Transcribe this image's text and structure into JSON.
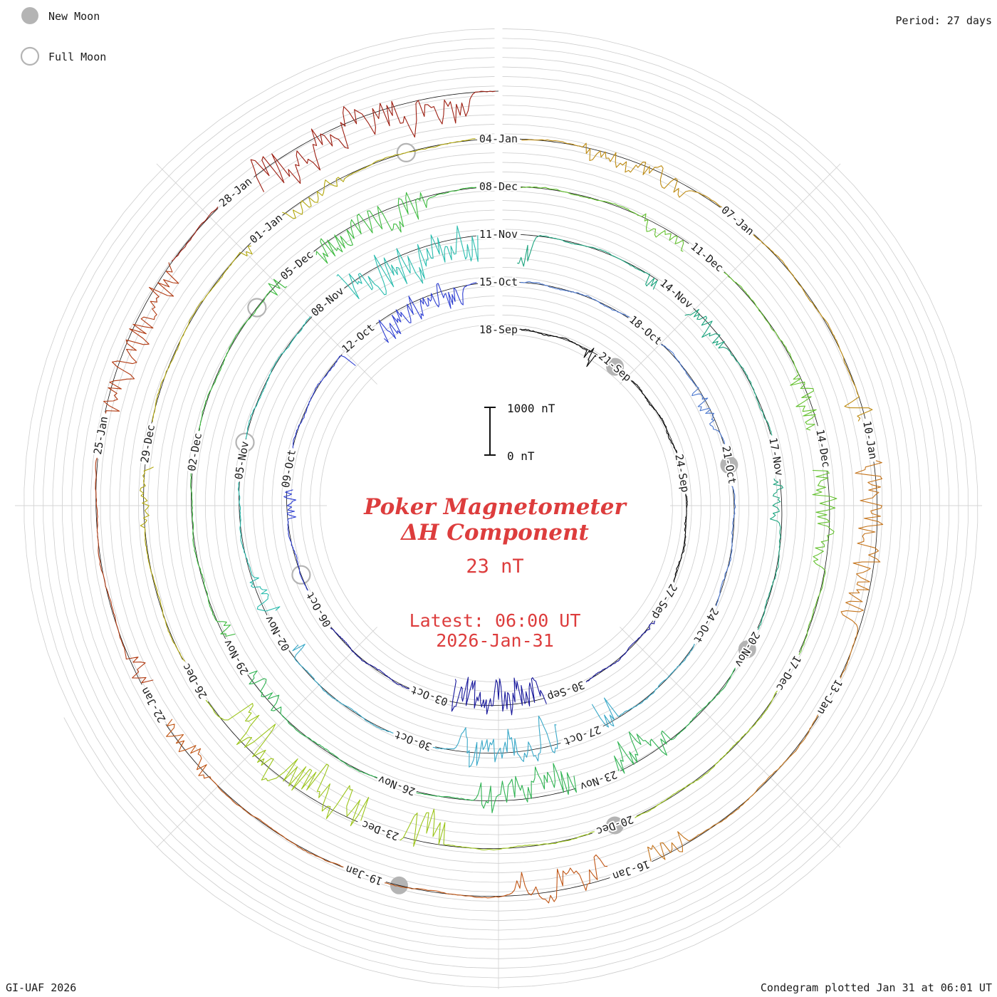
{
  "header": {
    "period_label": "Period: 27 days"
  },
  "legend": {
    "new_moon": "New Moon",
    "full_moon": "Full Moon"
  },
  "footer": {
    "left": "GI-UAF 2026",
    "right": "Condegram plotted Jan 31 at 06:01 UT"
  },
  "colors": {
    "accent": "#dd3d3d",
    "moon_gray": "#b4b4b4"
  },
  "center": {
    "title_line1": "Poker Magnetometer",
    "title_line2": "ΔH Component",
    "current_value": "23 nT",
    "latest_line1": "Latest: 06:00 UT",
    "latest_line2": "2026-Jan-31",
    "accent_color": "#dd3d3d"
  },
  "scalebar": {
    "top_label": "1000 nT",
    "bottom_label": "0 nT",
    "span_nt": 1000
  },
  "chart_data": {
    "type": "line",
    "subtype": "condegram-spiral",
    "title": "Poker Magnetometer ΔH Component",
    "station": "Poker",
    "component": "ΔH",
    "latest_value_nt": 23,
    "latest_time": "Latest: 06:00 UT 2026-Jan-31",
    "period_days": 27,
    "total_days": 135,
    "label_step_days": 3,
    "start_label": "18-Sep",
    "end_label": "31-Jan",
    "nt_per_ring_gap": 1000,
    "date_labels": [
      "18-Sep",
      "21-Sep",
      "24-Sep",
      "27-Sep",
      "30-Sep",
      "03-Oct",
      "06-Oct",
      "09-Oct",
      "12-Oct",
      "15-Oct",
      "18-Oct",
      "21-Oct",
      "24-Oct",
      "27-Oct",
      "30-Oct",
      "02-Nov",
      "05-Nov",
      "08-Nov",
      "11-Nov",
      "14-Nov",
      "17-Nov",
      "20-Nov",
      "23-Nov",
      "26-Nov",
      "29-Nov",
      "02-Dec",
      "05-Dec",
      "08-Dec",
      "11-Dec",
      "14-Dec",
      "17-Dec",
      "20-Dec",
      "23-Dec",
      "26-Dec",
      "29-Dec",
      "01-Jan",
      "04-Jan",
      "07-Jan",
      "10-Jan",
      "13-Jan",
      "16-Jan",
      "19-Jan",
      "22-Jan",
      "25-Jan",
      "28-Jan"
    ],
    "color_stops": [
      [
        0,
        "#000000"
      ],
      [
        9,
        "#16169b"
      ],
      [
        18,
        "#2d3ed2"
      ],
      [
        27,
        "#4a77cf"
      ],
      [
        36,
        "#38a8c8"
      ],
      [
        45,
        "#28bcae"
      ],
      [
        54,
        "#1ba47e"
      ],
      [
        63,
        "#2fb352"
      ],
      [
        72,
        "#3dbb3f"
      ],
      [
        81,
        "#63c12e"
      ],
      [
        90,
        "#9cc51a"
      ],
      [
        99,
        "#b3a80e"
      ],
      [
        108,
        "#bd8a10"
      ],
      [
        114,
        "#c4731a"
      ],
      [
        120,
        "#c05514"
      ],
      [
        126,
        "#b13a12"
      ],
      [
        131,
        "#9c1d10"
      ]
    ],
    "moons": [
      {
        "type": "new",
        "day": 3,
        "date": "21-Sep"
      },
      {
        "type": "new",
        "day": 33,
        "date": "21-Oct"
      },
      {
        "type": "new",
        "day": 63,
        "date": "20-Nov"
      },
      {
        "type": "new",
        "day": 93,
        "date": "20-Dec"
      },
      {
        "type": "new",
        "day": 122.6,
        "date": "19-Jan"
      },
      {
        "type": "full",
        "day": 18.8,
        "date": "07-Oct"
      },
      {
        "type": "full",
        "day": 48.3,
        "date": "05-Nov"
      },
      {
        "type": "full",
        "day": 77.2,
        "date": "04-Dec"
      },
      {
        "type": "full",
        "day": 106.9,
        "date": "03-Jan"
      }
    ],
    "disturbed_intervals": [
      [
        2.2,
        3.2,
        420
      ],
      [
        9.0,
        9.7,
        320
      ],
      [
        12.2,
        14.8,
        760
      ],
      [
        20.0,
        20.6,
        300
      ],
      [
        23.5,
        26.3,
        640
      ],
      [
        31.5,
        32.3,
        300
      ],
      [
        38.3,
        41.2,
        800
      ],
      [
        44.5,
        46.0,
        420
      ],
      [
        51.2,
        54.6,
        850
      ],
      [
        56.5,
        58.1,
        430
      ],
      [
        60.3,
        61.0,
        300
      ],
      [
        64.8,
        67.8,
        800
      ],
      [
        71.0,
        72.6,
        360
      ],
      [
        77.5,
        80.0,
        700
      ],
      [
        83.0,
        84.0,
        320
      ],
      [
        86.0,
        88.6,
        520
      ],
      [
        95.2,
        98.4,
        950
      ],
      [
        101.0,
        102.0,
        300
      ],
      [
        104.6,
        106.1,
        360
      ],
      [
        109.0,
        110.3,
        420
      ],
      [
        113.5,
        116.1,
        560
      ],
      [
        119.3,
        121.3,
        720
      ],
      [
        125.0,
        126.6,
        460
      ],
      [
        129.3,
        131.0,
        600
      ],
      [
        131.8,
        134.7,
        950
      ]
    ],
    "noise_seed": 20260131
  }
}
